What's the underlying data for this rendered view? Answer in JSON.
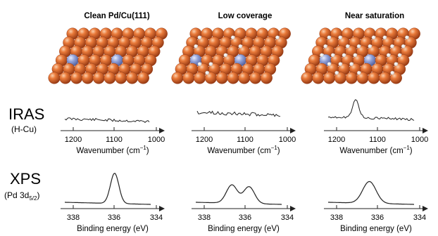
{
  "panel_titles": [
    "Clean Pd/Cu(111)",
    "Low coverage",
    "Near saturation"
  ],
  "iras": {
    "title": "IRAS",
    "subtitle": "(H-Cu)",
    "ticks": [
      "1200",
      "1100",
      "1000"
    ],
    "xlabel_text": "Wavenumber (cm",
    "xlabel_sup": "−1",
    "xlabel_end": ")"
  },
  "xps": {
    "title": "XPS",
    "subtitle_main": "(Pd 3d",
    "subtitle_sub": "5/2",
    "subtitle_end": ")",
    "ticks": [
      "338",
      "336",
      "334"
    ],
    "xlabel": "Binding energy (eV)"
  },
  "colors": {
    "cu_atom": "#d9622a",
    "cu_atom_dark": "#8f3410",
    "cu_atom_light": "#f7b27f",
    "pd_atom": "#8e9ed6",
    "h_atom": "#ffffff",
    "line": "#222222"
  },
  "coverage_h_fraction": [
    0,
    0.15,
    0.7
  ]
}
